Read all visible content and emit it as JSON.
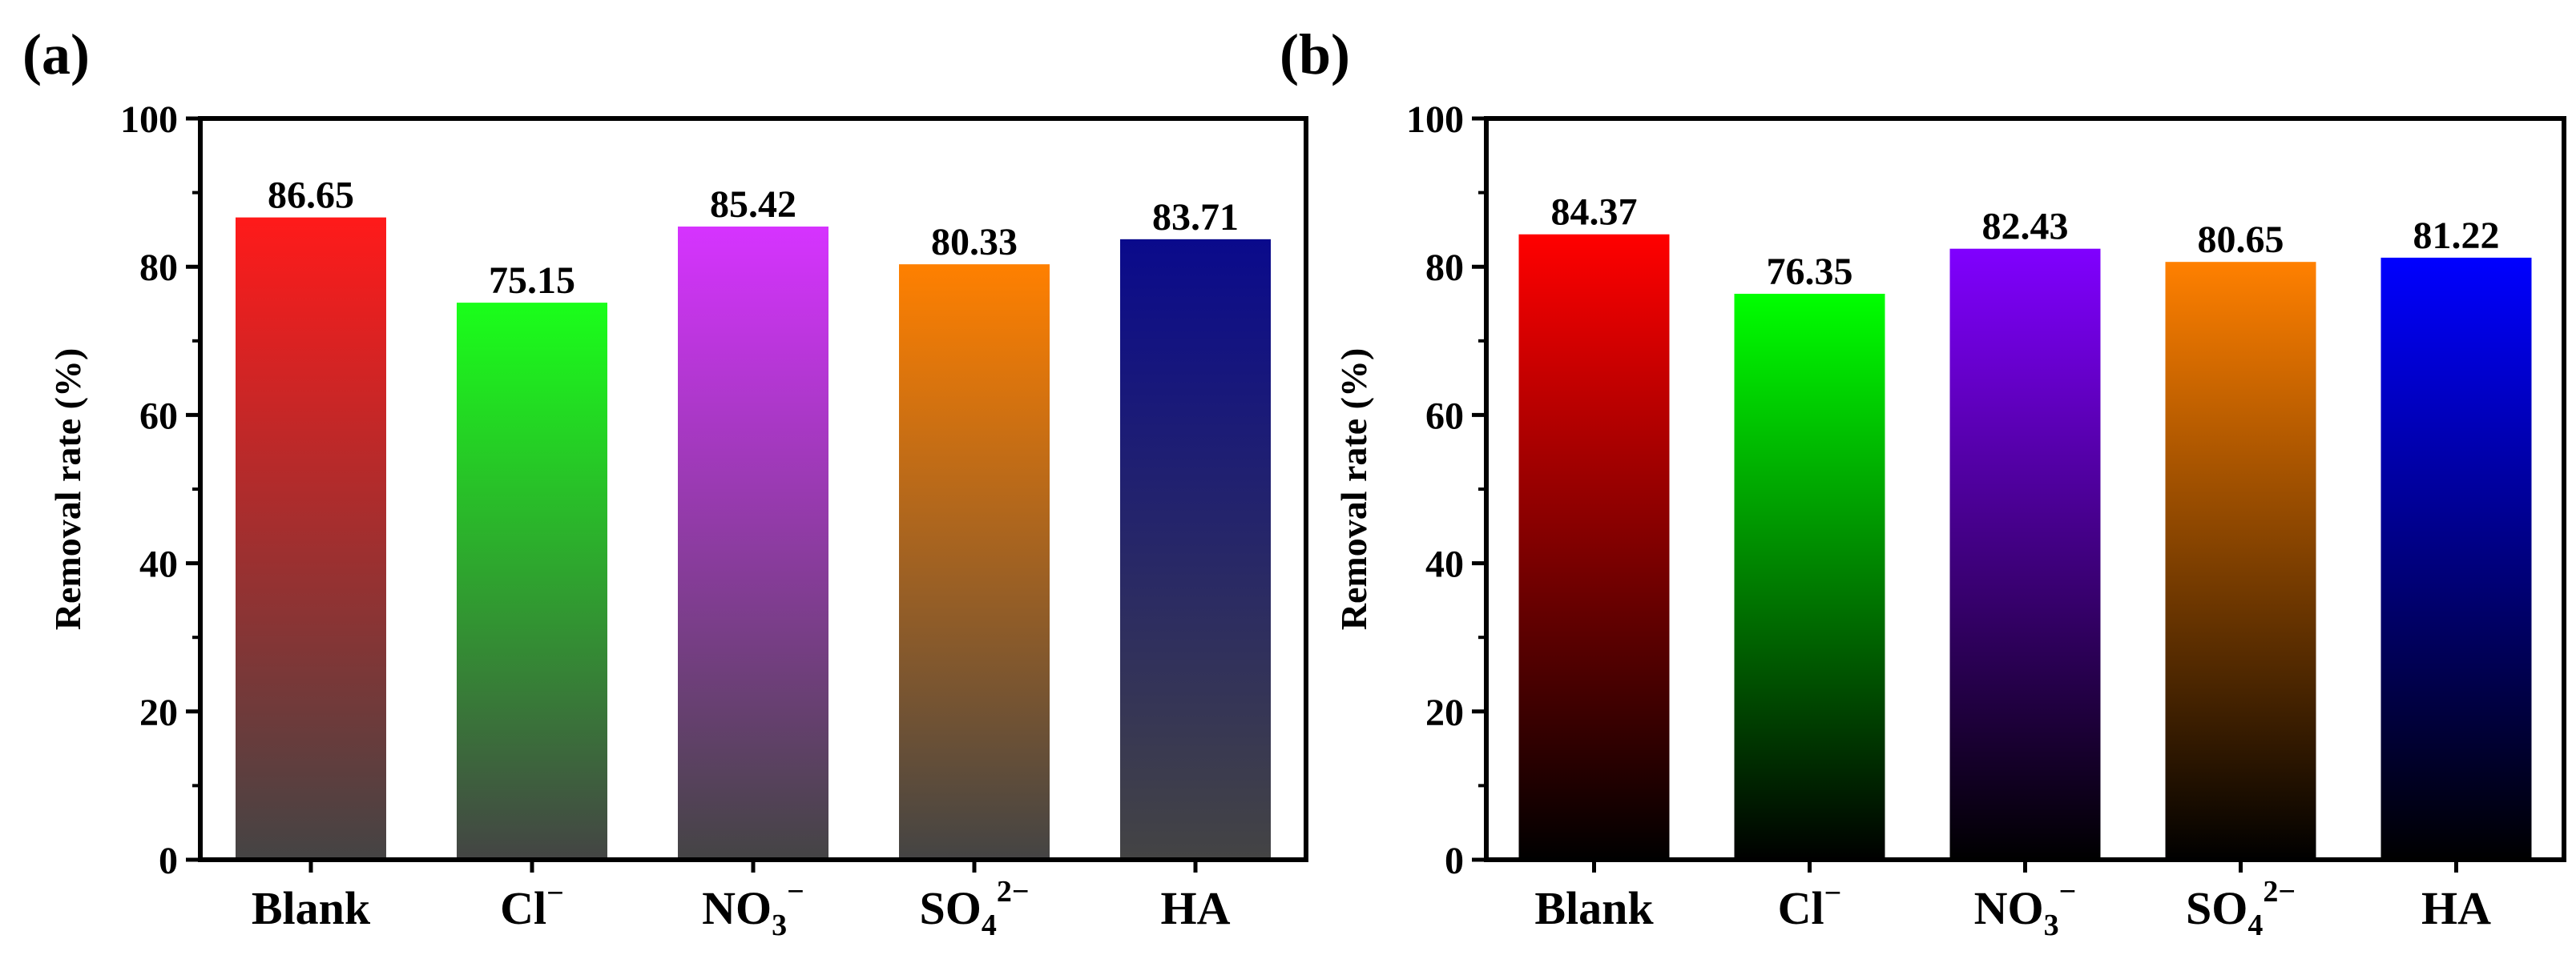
{
  "chart_data": [
    {
      "type": "bar",
      "panel_label": "(a)",
      "ylabel": "Removal rate (%)",
      "xlabel": "",
      "ylim": [
        0,
        100
      ],
      "yticks": [
        "0",
        "20",
        "40",
        "60",
        "80",
        "100"
      ],
      "categories": [
        {
          "base": "Blank",
          "sub": "",
          "sup": ""
        },
        {
          "base": "Cl",
          "sub": "",
          "sup": "−"
        },
        {
          "base": "NO",
          "sub": "3",
          "sup": "−"
        },
        {
          "base": "SO",
          "sub": "4",
          "sup": "2−"
        },
        {
          "base": "HA",
          "sub": "",
          "sup": ""
        }
      ],
      "values": [
        86.65,
        75.15,
        85.42,
        80.33,
        83.71
      ],
      "value_labels": [
        "86.65",
        "75.15",
        "85.42",
        "80.33",
        "83.71"
      ],
      "bar_colors_top": [
        "#ff1a1a",
        "#1aff1a",
        "#d633ff",
        "#ff8000",
        "#0a0a8c"
      ],
      "bar_colors_bottom": [
        "#444444",
        "#444444",
        "#444444",
        "#444444",
        "#444444"
      ]
    },
    {
      "type": "bar",
      "panel_label": "(b)",
      "ylabel": "Removal rate (%)",
      "xlabel": "",
      "ylim": [
        0,
        100
      ],
      "yticks": [
        "0",
        "20",
        "40",
        "60",
        "80",
        "100"
      ],
      "categories": [
        {
          "base": "Blank",
          "sub": "",
          "sup": ""
        },
        {
          "base": "Cl",
          "sub": "",
          "sup": "−"
        },
        {
          "base": "NO",
          "sub": "3",
          "sup": "−"
        },
        {
          "base": "SO",
          "sub": "4",
          "sup": "2−"
        },
        {
          "base": "HA",
          "sub": "",
          "sup": ""
        }
      ],
      "values": [
        84.37,
        76.35,
        82.43,
        80.65,
        81.22
      ],
      "value_labels": [
        "84.37",
        "76.35",
        "82.43",
        "80.65",
        "81.22"
      ],
      "bar_colors_top": [
        "#ff0000",
        "#00ff00",
        "#8000ff",
        "#ff8000",
        "#0000ff"
      ],
      "bar_colors_bottom": [
        "#000000",
        "#000000",
        "#000000",
        "#000000",
        "#000000"
      ]
    }
  ]
}
